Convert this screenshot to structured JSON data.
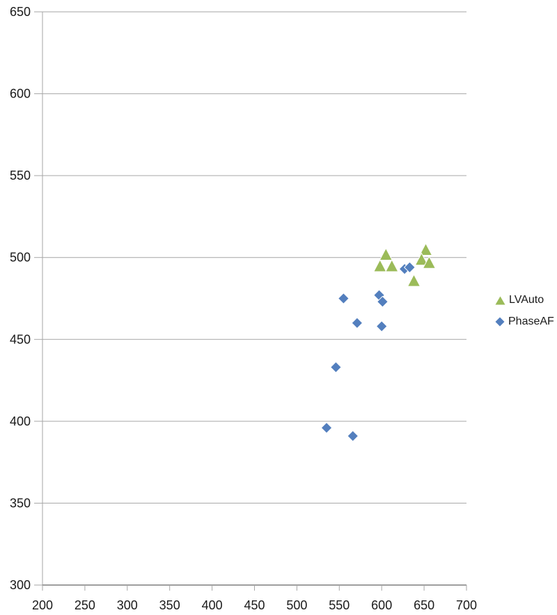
{
  "chart_data": {
    "type": "scatter",
    "title": "",
    "xlabel": "",
    "ylabel": "",
    "xlim": [
      200,
      700
    ],
    "ylim": [
      300,
      650
    ],
    "x_ticks": [
      200,
      250,
      300,
      350,
      400,
      450,
      500,
      550,
      600,
      650,
      700
    ],
    "y_ticks": [
      300,
      350,
      400,
      450,
      500,
      550,
      600,
      650
    ],
    "grid": "horizontal",
    "legend_position": "right",
    "series": [
      {
        "name": "LVAuto",
        "marker": "triangle",
        "color": "#9BBB59",
        "points": [
          [
            605,
            502
          ],
          [
            598,
            495
          ],
          [
            612,
            495
          ],
          [
            652,
            505
          ],
          [
            647,
            499
          ],
          [
            656,
            497
          ],
          [
            638,
            486
          ]
        ]
      },
      {
        "name": "PhaseAF",
        "marker": "diamond",
        "color": "#537FBE",
        "points": [
          [
            555,
            475
          ],
          [
            597,
            477
          ],
          [
            601,
            473
          ],
          [
            571,
            460
          ],
          [
            600,
            458
          ],
          [
            546,
            433
          ],
          [
            535,
            396
          ],
          [
            566,
            391
          ],
          [
            627,
            493
          ],
          [
            633,
            494
          ]
        ]
      }
    ]
  },
  "colors": {
    "grid": "#A6A6A6",
    "axis": "#7F7F7F",
    "text": "#1A1A1A",
    "background": "#FFFFFF",
    "marker_outline": "#FFFFFF"
  }
}
